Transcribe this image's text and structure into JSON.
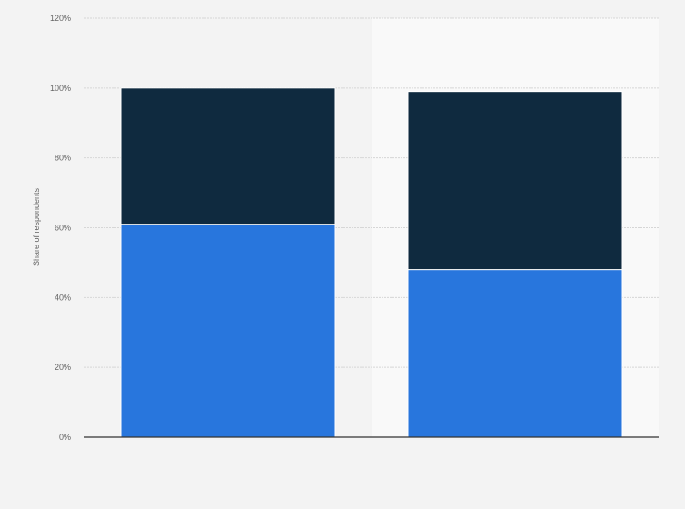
{
  "chart_data": {
    "type": "bar",
    "stacked": true,
    "title": "",
    "xlabel": "",
    "ylabel": "Share of respondents",
    "ylim": [
      0,
      120
    ],
    "yticks": [
      "0%",
      "20%",
      "40%",
      "60%",
      "80%",
      "100%",
      "120%"
    ],
    "categories": [
      "",
      ""
    ],
    "series": [
      {
        "values": [
          61,
          48
        ],
        "color": "#2876dd"
      },
      {
        "values": [
          39,
          51
        ],
        "color": "#0f2a3f"
      }
    ],
    "grid": true,
    "legend": "none"
  }
}
